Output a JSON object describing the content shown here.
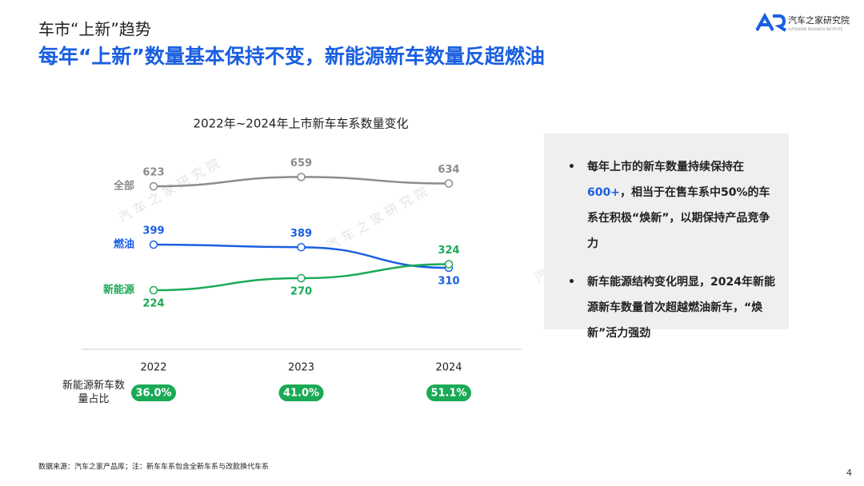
{
  "header": {
    "section": "车市“上新”趋势",
    "headline": "每年“上新”数量基本保持不变，新能源新车数量反超燃油",
    "logo": "汽车之家研究院",
    "logo_sub": "AUTOHOME RESEARCH INSTITUTE"
  },
  "watermark": "汽 车 之 家 研 究 院",
  "chart_data": {
    "type": "line",
    "title": "2022年~2024年上市新车车系数量变化",
    "categories": [
      "2022",
      "2023",
      "2024"
    ],
    "series": [
      {
        "name": "全部",
        "color": "#8c8c8c",
        "values": [
          623,
          659,
          634
        ]
      },
      {
        "name": "燃油",
        "color": "#1a5fe0",
        "values": [
          399,
          389,
          310
        ]
      },
      {
        "name": "新能源",
        "color": "#1aaa55",
        "values": [
          224,
          270,
          324
        ]
      }
    ],
    "share": {
      "label": "新能源新车数量占比",
      "color": "#1aaa55",
      "values": [
        36.0,
        41.0,
        51.1
      ],
      "value_labels": [
        "36.0%",
        "41.0%",
        "51.1%"
      ]
    }
  },
  "notes": [
    {
      "before": "每年上市的新车数量持续保持在",
      "highlight": "600+",
      "after": "，相当于在售车系中50%的车系在积极“焕新”，以期保持产品竞争力"
    },
    {
      "before": "新车能源结构变化明显，2024年新能源新车数量首次超越燃油新车，“焕新”活力强劲"
    }
  ],
  "footer": {
    "source": "数据来源：汽车之家产品库；注：新车车系包含全新车系与改款换代车系",
    "page": 4
  }
}
